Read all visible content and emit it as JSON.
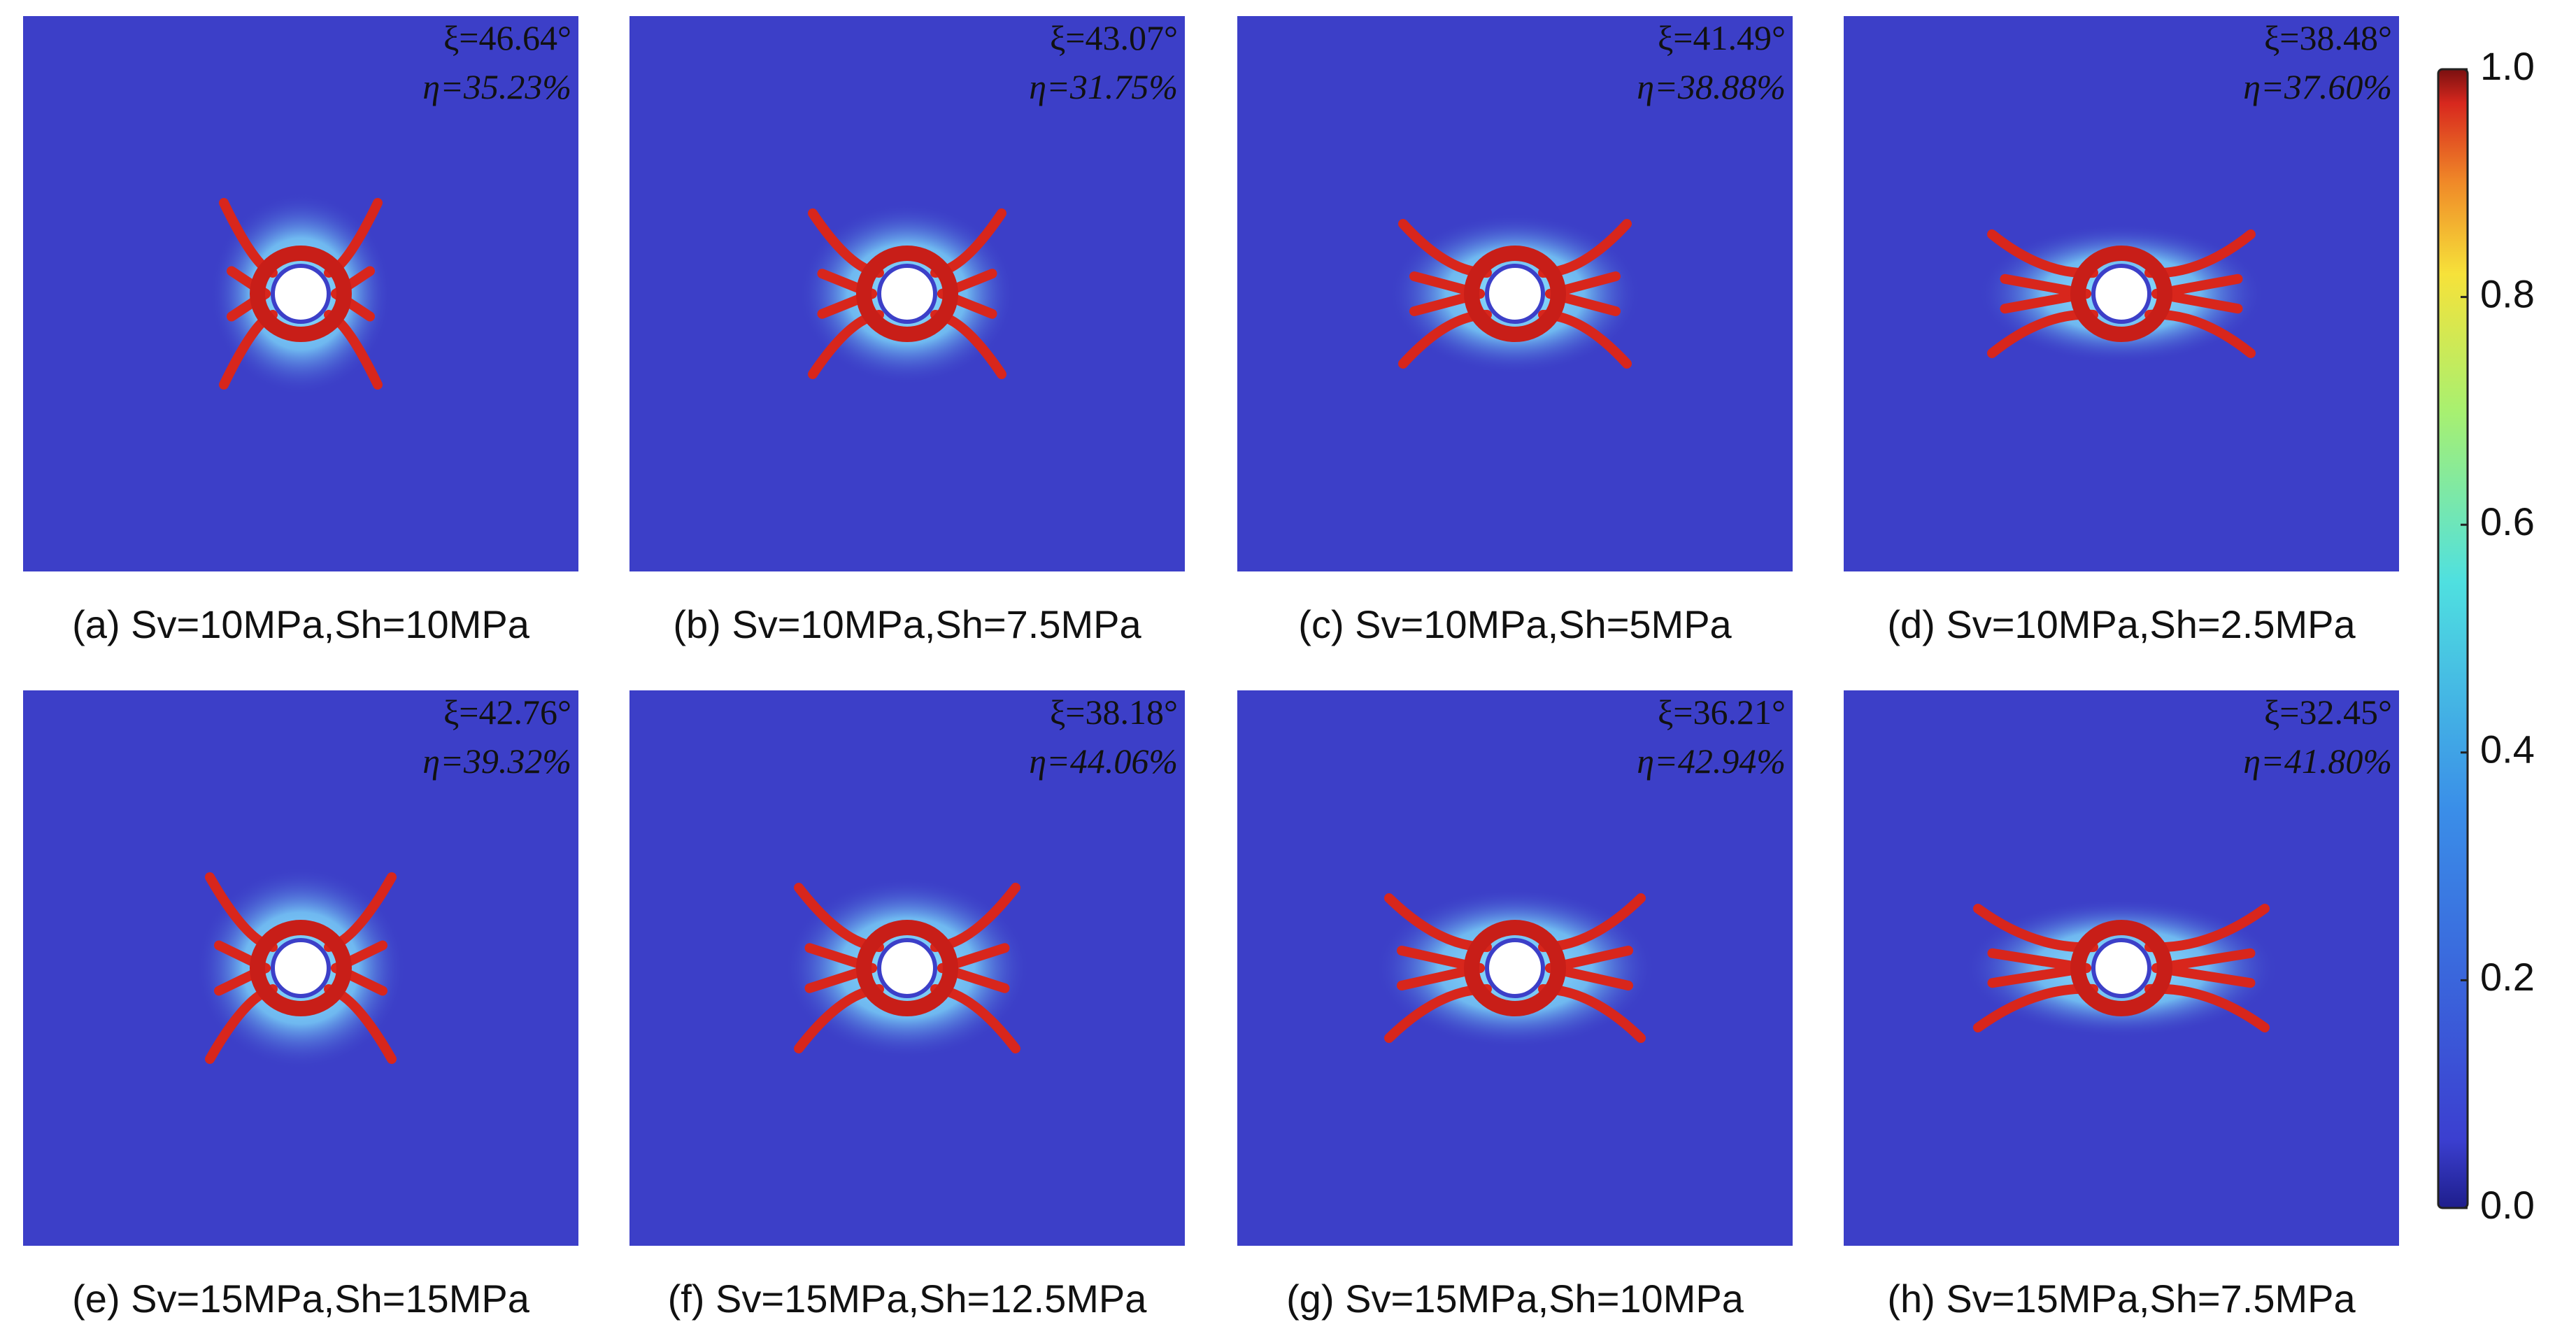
{
  "panels": [
    {
      "caption": "(a) Sv=10MPa,Sh=10MPa",
      "xi": "ξ=46.64°",
      "eta": "η=35.23%"
    },
    {
      "caption": "(b) Sv=10MPa,Sh=7.5MPa",
      "xi": "ξ=43.07°",
      "eta": "η=31.75%"
    },
    {
      "caption": "(c) Sv=10MPa,Sh=5MPa",
      "xi": "ξ=41.49°",
      "eta": "η=38.88%"
    },
    {
      "caption": "(d) Sv=10MPa,Sh=2.5MPa",
      "xi": "ξ=38.48°",
      "eta": "η=37.60%"
    },
    {
      "caption": "(e) Sv=15MPa,Sh=15MPa",
      "xi": "ξ=42.76°",
      "eta": "η=39.32%"
    },
    {
      "caption": "(f) Sv=15MPa,Sh=12.5MPa",
      "xi": "ξ=38.18°",
      "eta": "η=44.06%"
    },
    {
      "caption": "(g) Sv=15MPa,Sh=10MPa",
      "xi": "ξ=36.21°",
      "eta": "η=42.94%"
    },
    {
      "caption": "(h) Sv=15MPa,Sh=7.5MPa",
      "xi": "ξ=32.45°",
      "eta": "η=41.80%"
    }
  ],
  "colorbar": {
    "lim": [
      0,
      1
    ],
    "ticks": [
      {
        "value": 0,
        "label": "0.0"
      },
      0.2,
      0.4,
      0.6,
      0.8,
      {
        "value": 1,
        "label": "1.0"
      }
    ]
  }
}
